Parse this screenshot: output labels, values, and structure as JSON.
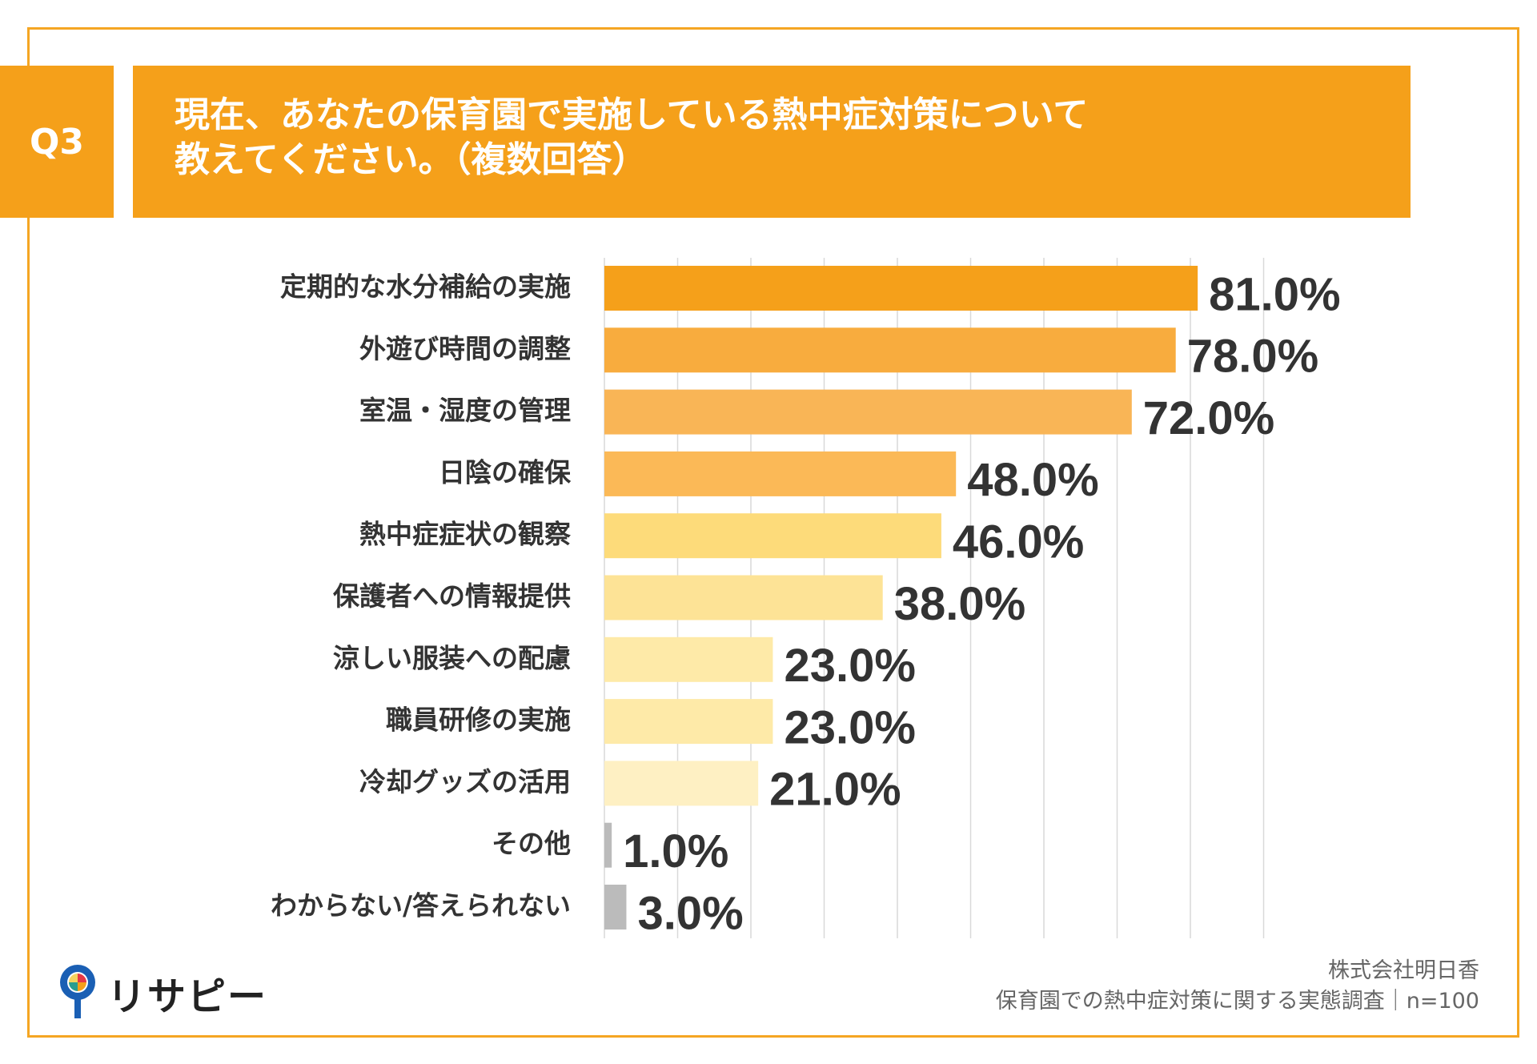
{
  "header": {
    "badge": "Q3",
    "title_line1": "現在、あなたの保育園で実施している熱中症対策について",
    "title_line2": "教えてください。（複数回答）"
  },
  "chart_data": {
    "type": "bar",
    "orientation": "horizontal",
    "categories": [
      "定期的な水分補給の実施",
      "外遊び時間の調整",
      "室温・湿度の管理",
      "日陰の確保",
      "熱中症症状の観察",
      "保護者への情報提供",
      "涼しい服装への配慮",
      "職員研修の実施",
      "冷却グッズの活用",
      "その他",
      "わからない/答えられない"
    ],
    "values": [
      81.0,
      78.0,
      72.0,
      48.0,
      46.0,
      38.0,
      23.0,
      23.0,
      21.0,
      1.0,
      3.0
    ],
    "value_labels": [
      "81.0%",
      "78.0%",
      "72.0%",
      "48.0%",
      "46.0%",
      "38.0%",
      "23.0%",
      "23.0%",
      "21.0%",
      "1.0%",
      "3.0%"
    ],
    "bar_colors": [
      "#f5a01a",
      "#f8ac3e",
      "#f9b556",
      "#fbb957",
      "#fddb7a",
      "#fde396",
      "#feeaa8",
      "#feeaa8",
      "#fef0c3",
      "#bbbbbb",
      "#bbbbbb"
    ],
    "xlim": [
      0,
      90
    ],
    "grid": true
  },
  "footer": {
    "company": "株式会社明日香",
    "survey": "保育園での熱中症対策に関する実態調査｜n=100"
  },
  "logo": {
    "text": "リサピー"
  },
  "colors": {
    "accent": "#f5a01a",
    "frame": "#f5a623"
  }
}
